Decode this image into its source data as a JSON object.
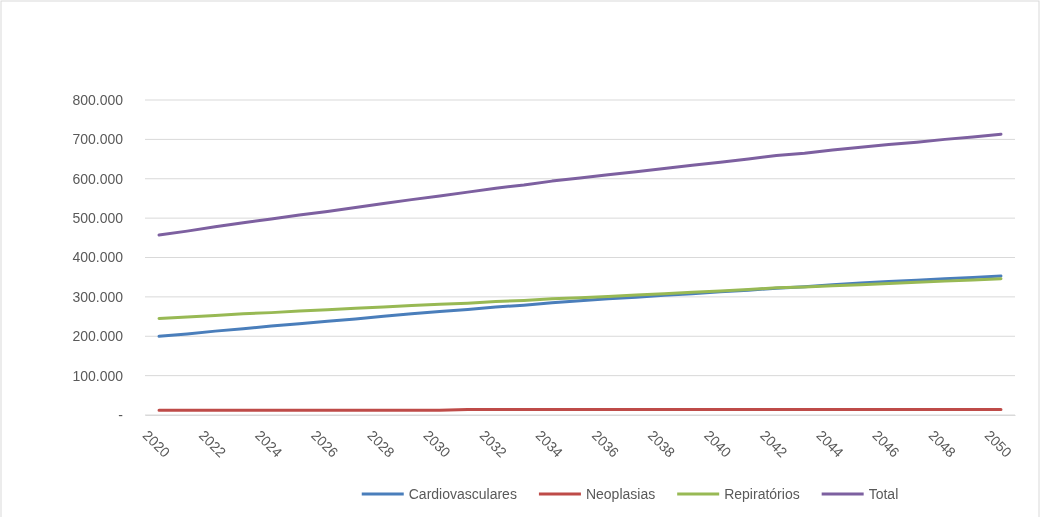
{
  "chart_data": {
    "type": "line",
    "categories": [
      "2020",
      null,
      "2022",
      null,
      "2024",
      null,
      "2026",
      null,
      "2028",
      null,
      "2030",
      null,
      "2032",
      null,
      "2034",
      null,
      "2036",
      null,
      "2038",
      null,
      "2040",
      null,
      "2042",
      null,
      "2044",
      null,
      "2046",
      null,
      "2048",
      null,
      "2050"
    ],
    "series": [
      {
        "name": "Cardiovasculares",
        "color": "#4a7ebb",
        "values": [
          200000,
          206000,
          213000,
          219000,
          226000,
          232000,
          238000,
          244000,
          251000,
          257000,
          263000,
          268000,
          274000,
          279000,
          285000,
          290000,
          295000,
          299000,
          304000,
          308000,
          313000,
          317000,
          322000,
          326000,
          331000,
          335000,
          339000,
          342000,
          346000,
          349000,
          353000
        ]
      },
      {
        "name": "Neoplasias",
        "color": "#be4b48",
        "values": [
          12000,
          12000,
          12000,
          12000,
          12000,
          12000,
          12000,
          12000,
          12000,
          12000,
          12000,
          14000,
          14000,
          14000,
          14000,
          14000,
          14000,
          14000,
          14000,
          14000,
          14000,
          14000,
          14000,
          14000,
          14000,
          14000,
          14000,
          14000,
          14000,
          14000,
          14000
        ]
      },
      {
        "name": "Repiratórios",
        "color": "#98b954",
        "values": [
          245000,
          249000,
          253000,
          257000,
          260000,
          264000,
          267000,
          271000,
          274000,
          278000,
          281000,
          284000,
          288000,
          291000,
          295000,
          298000,
          301000,
          305000,
          308000,
          312000,
          315000,
          319000,
          323000,
          325000,
          328000,
          331000,
          334000,
          337000,
          340000,
          343000,
          346000
        ]
      },
      {
        "name": "Total",
        "color": "#7d60a0",
        "values": [
          457000,
          467000,
          478000,
          488000,
          498000,
          508000,
          517000,
          527000,
          537000,
          547000,
          556000,
          566000,
          576000,
          584000,
          594000,
          602000,
          610000,
          618000,
          626000,
          634000,
          642000,
          650000,
          659000,
          665000,
          673000,
          680000,
          687000,
          693000,
          700000,
          706000,
          713000
        ]
      }
    ],
    "ylim": [
      0,
      800000
    ],
    "yticks": [
      {
        "value": 0,
        "label": "-"
      },
      {
        "value": 100000,
        "label": "100.000"
      },
      {
        "value": 200000,
        "label": "200.000"
      },
      {
        "value": 300000,
        "label": "300.000"
      },
      {
        "value": 400000,
        "label": "400.000"
      },
      {
        "value": 500000,
        "label": "500.000"
      },
      {
        "value": 600000,
        "label": "600.000"
      },
      {
        "value": 700000,
        "label": "700.000"
      },
      {
        "value": 800000,
        "label": "800.000"
      }
    ],
    "grid": "y",
    "legend": "bottom"
  }
}
